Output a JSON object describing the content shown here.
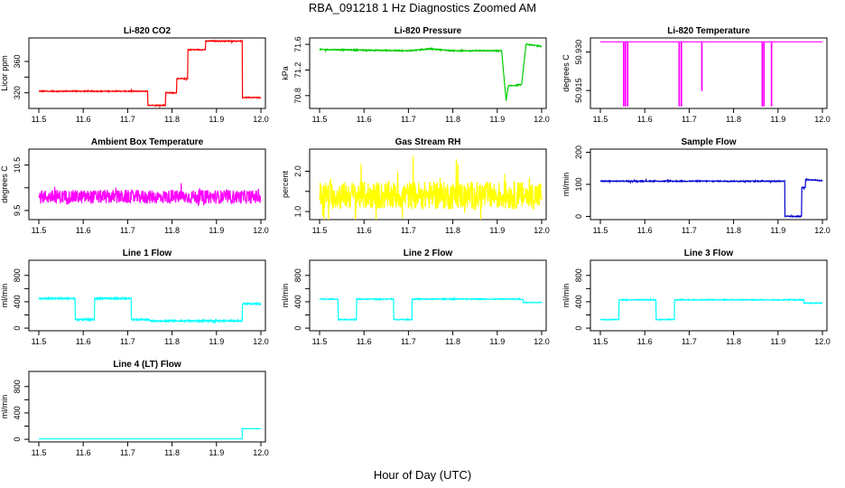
{
  "figure": {
    "title": "RBA_091218  1 Hz Diagnostics Zoomed AM",
    "xlabel": "Hour of Day (UTC)"
  },
  "chart_data": [
    {
      "type": "line",
      "title": "Li-820 CO2",
      "ylabel": "Licor ppm",
      "color": "#ff0000",
      "xlim": [
        11.5,
        12.0
      ],
      "ylim": [
        300,
        390
      ],
      "xticks": [
        11.5,
        11.6,
        11.7,
        11.8,
        11.9,
        12.0
      ],
      "yticks": [
        320,
        340,
        360
      ],
      "ytick_labels": [
        "320",
        "",
        "360"
      ],
      "noise": 0.6,
      "x": [
        11.5,
        11.745,
        11.745,
        11.785,
        11.785,
        11.81,
        11.81,
        11.835,
        11.835,
        11.875,
        11.875,
        11.958,
        11.958,
        12.0
      ],
      "y": [
        322,
        322,
        304,
        304,
        320,
        320,
        338,
        338,
        375,
        375,
        386,
        386,
        314,
        314
      ]
    },
    {
      "type": "line",
      "title": "Li-820 Pressure",
      "ylabel": "kPa",
      "color": "#00cc00",
      "xlim": [
        11.5,
        12.0
      ],
      "ylim": [
        70.6,
        71.7
      ],
      "xticks": [
        11.5,
        11.6,
        11.7,
        11.8,
        11.9,
        12.0
      ],
      "yticks": [
        70.8,
        71.2,
        71.6
      ],
      "ytick_labels": [
        "70.8",
        "71.2",
        "71.6"
      ],
      "noise": 0.008,
      "x": [
        11.5,
        11.6,
        11.7,
        11.75,
        11.8,
        11.9,
        11.91,
        11.915,
        11.92,
        11.925,
        11.955,
        11.96,
        11.965,
        12.0
      ],
      "y": [
        71.52,
        71.51,
        71.5,
        71.53,
        71.5,
        71.5,
        71.5,
        71.1,
        70.72,
        70.95,
        70.97,
        71.3,
        71.6,
        71.57
      ]
    },
    {
      "type": "line",
      "title": "Li-820 Temperature",
      "ylabel": "degrees C",
      "color": "#ff00ff",
      "xlim": [
        11.5,
        12.0
      ],
      "ylim": [
        50.908,
        50.9355
      ],
      "xticks": [
        11.5,
        11.6,
        11.7,
        11.8,
        11.9,
        12.0
      ],
      "yticks": [
        50.915,
        50.93
      ],
      "ytick_labels": [
        "50.915",
        "50.930"
      ],
      "noise": 0,
      "x": [
        11.5,
        11.552,
        11.552,
        11.553,
        11.553,
        11.556,
        11.556,
        11.557,
        11.557,
        11.561,
        11.561,
        11.562,
        11.562,
        11.677,
        11.677,
        11.678,
        11.678,
        11.682,
        11.682,
        11.683,
        11.683,
        11.728,
        11.728,
        11.729,
        11.729,
        11.864,
        11.864,
        11.865,
        11.865,
        11.868,
        11.868,
        11.869,
        11.869,
        11.885,
        11.885,
        11.886,
        11.886,
        12.0
      ],
      "y": [
        50.934,
        50.934,
        50.909,
        50.909,
        50.934,
        50.934,
        50.909,
        50.909,
        50.934,
        50.934,
        50.909,
        50.909,
        50.934,
        50.934,
        50.909,
        50.909,
        50.934,
        50.934,
        50.909,
        50.909,
        50.934,
        50.934,
        50.915,
        50.915,
        50.934,
        50.934,
        50.909,
        50.909,
        50.934,
        50.934,
        50.909,
        50.909,
        50.934,
        50.934,
        50.909,
        50.909,
        50.934,
        50.934
      ]
    },
    {
      "type": "line",
      "title": "Ambient Box Temperature",
      "ylabel": "degrees C",
      "color": "#ff00ff",
      "xlim": [
        11.5,
        12.0
      ],
      "ylim": [
        9.3,
        10.85
      ],
      "xticks": [
        11.5,
        11.6,
        11.7,
        11.8,
        11.9,
        12.0
      ],
      "yticks": [
        9.5,
        10,
        10.5
      ],
      "ytick_labels": [
        "9.5",
        "",
        "10.5"
      ],
      "noise": 0.15,
      "x": [
        11.5,
        12.0
      ],
      "y": [
        9.8,
        9.8
      ]
    },
    {
      "type": "line",
      "title": "Gas Stream RH",
      "ylabel": "percent",
      "color": "#ffff00",
      "xlim": [
        11.5,
        12.0
      ],
      "ylim": [
        0.8,
        2.55
      ],
      "xticks": [
        11.5,
        11.6,
        11.7,
        11.8,
        11.9,
        12.0
      ],
      "yticks": [
        1.0,
        1.5,
        2.0
      ],
      "ytick_labels": [
        "1.0",
        "",
        "2.0"
      ],
      "noise": 0.35,
      "x": [
        11.5,
        12.0
      ],
      "y": [
        1.4,
        1.4
      ]
    },
    {
      "type": "line",
      "title": "Sample Flow",
      "ylabel": "ml/min",
      "color": "#0000cc",
      "xlim": [
        11.5,
        12.0
      ],
      "ylim": [
        -10,
        210
      ],
      "xticks": [
        11.5,
        11.6,
        11.7,
        11.8,
        11.9,
        12.0
      ],
      "yticks": [
        0,
        100,
        200
      ],
      "ytick_labels": [
        "0",
        "100",
        "200"
      ],
      "noise": 1.5,
      "x": [
        11.5,
        11.9,
        11.915,
        11.915,
        11.953,
        11.953,
        11.962,
        11.962,
        12.0
      ],
      "y": [
        110,
        110,
        110,
        0,
        0,
        90,
        90,
        115,
        112
      ]
    },
    {
      "type": "line",
      "title": "Line 1 Flow",
      "ylabel": "ml/min",
      "color": "#00ffff",
      "xlim": [
        11.5,
        12.0
      ],
      "ylim": [
        -40,
        1030
      ],
      "xticks": [
        11.5,
        11.6,
        11.7,
        11.8,
        11.9,
        12.0
      ],
      "yticks": [
        0,
        200,
        400,
        600,
        800
      ],
      "ytick_labels": [
        "0",
        "",
        "400",
        "",
        "800"
      ],
      "noise": 12,
      "x": [
        11.5,
        11.582,
        11.582,
        11.625,
        11.625,
        11.708,
        11.708,
        11.75,
        11.75,
        11.958,
        11.958,
        12.0
      ],
      "y": [
        450,
        450,
        130,
        130,
        450,
        450,
        130,
        130,
        110,
        110,
        370,
        370
      ]
    },
    {
      "type": "line",
      "title": "Line 2 Flow",
      "ylabel": "ml/min",
      "color": "#00ffff",
      "xlim": [
        11.5,
        12.0
      ],
      "ylim": [
        -40,
        1030
      ],
      "xticks": [
        11.5,
        11.6,
        11.7,
        11.8,
        11.9,
        12.0
      ],
      "yticks": [
        0,
        200,
        400,
        600,
        800
      ],
      "ytick_labels": [
        "0",
        "",
        "400",
        "",
        "800"
      ],
      "noise": 6,
      "x": [
        11.5,
        11.542,
        11.542,
        11.583,
        11.583,
        11.667,
        11.667,
        11.708,
        11.708,
        11.958,
        11.958,
        12.0
      ],
      "y": [
        440,
        440,
        130,
        130,
        440,
        440,
        130,
        130,
        440,
        440,
        390,
        390
      ]
    },
    {
      "type": "line",
      "title": "Line 3 Flow",
      "ylabel": "ml/min",
      "color": "#00ffff",
      "xlim": [
        11.5,
        12.0
      ],
      "ylim": [
        -40,
        1030
      ],
      "xticks": [
        11.5,
        11.6,
        11.7,
        11.8,
        11.9,
        12.0
      ],
      "yticks": [
        0,
        200,
        400,
        600,
        800
      ],
      "ytick_labels": [
        "0",
        "",
        "400",
        "",
        "800"
      ],
      "noise": 6,
      "x": [
        11.5,
        11.542,
        11.542,
        11.625,
        11.625,
        11.667,
        11.667,
        11.958,
        11.958,
        12.0
      ],
      "y": [
        130,
        130,
        430,
        430,
        130,
        130,
        430,
        430,
        380,
        380
      ]
    },
    {
      "type": "line",
      "title": "Line 4 (LT) Flow",
      "ylabel": "ml/min",
      "color": "#00ffff",
      "xlim": [
        11.5,
        12.0
      ],
      "ylim": [
        -40,
        1030
      ],
      "xticks": [
        11.5,
        11.6,
        11.7,
        11.8,
        11.9,
        12.0
      ],
      "yticks": [
        0,
        200,
        400,
        600,
        800
      ],
      "ytick_labels": [
        "0",
        "",
        "400",
        "",
        "800"
      ],
      "noise": 0,
      "x": [
        11.5,
        11.958,
        11.958,
        12.0
      ],
      "y": [
        5,
        5,
        160,
        160
      ]
    }
  ]
}
